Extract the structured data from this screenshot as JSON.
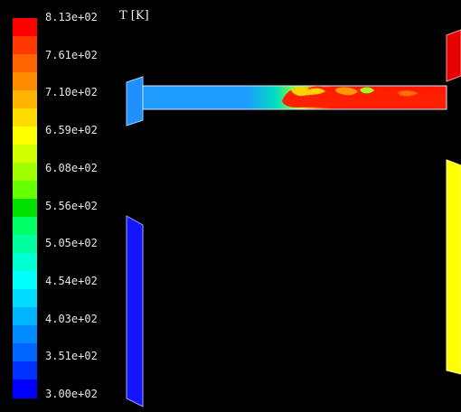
{
  "title": "T [K]",
  "legend_ticks": [
    "8.13e+02",
    "7.61e+02",
    "7.10e+02",
    "6.59e+02",
    "6.08e+02",
    "5.56e+02",
    "5.05e+02",
    "4.54e+02",
    "4.03e+02",
    "3.51e+02",
    "3.00e+02"
  ],
  "colormap": [
    "#ff0000",
    "#ff3a00",
    "#ff6400",
    "#ff8c00",
    "#ffb400",
    "#ffdc00",
    "#ffff00",
    "#d2ff00",
    "#a0ff00",
    "#64ff00",
    "#00e000",
    "#00ff64",
    "#00ffa0",
    "#00ffd2",
    "#00ffff",
    "#00dcff",
    "#00b4ff",
    "#008cff",
    "#0064ff",
    "#0032ff",
    "#0000ff"
  ],
  "colors": {
    "background": "#000000",
    "inlet_left": "#1e90ff",
    "wall_left": "#1010ff",
    "outlet_right_top": "#e00000",
    "wall_right": "#ffff00"
  }
}
